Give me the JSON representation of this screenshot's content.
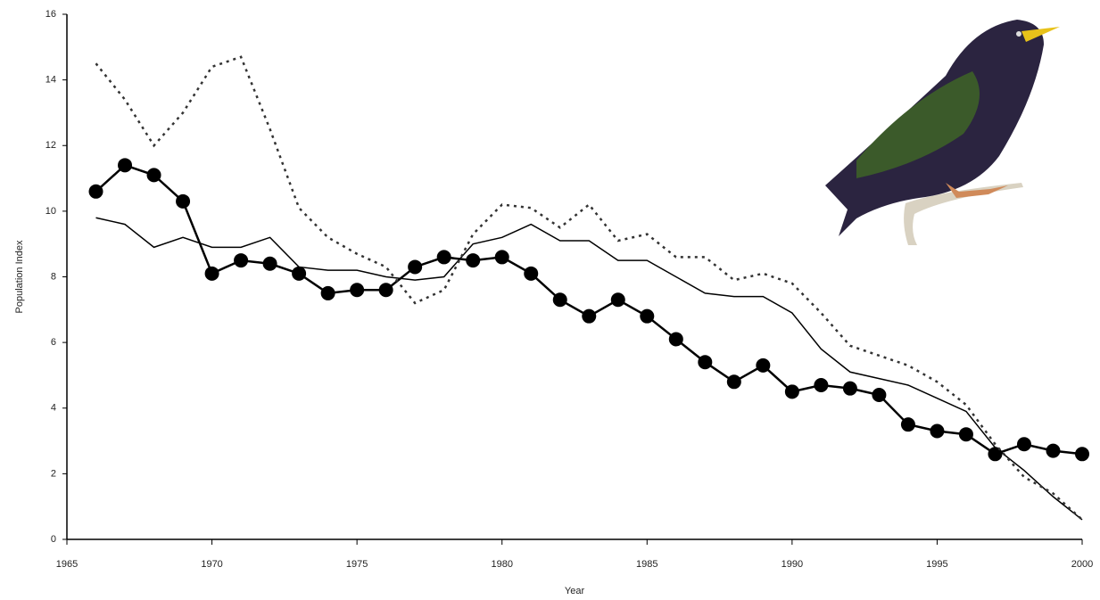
{
  "chart_data": {
    "type": "line",
    "x_label": "Year",
    "y_label": "Population Index",
    "x": [
      1966,
      1967,
      1968,
      1969,
      1970,
      1971,
      1972,
      1973,
      1974,
      1975,
      1976,
      1977,
      1978,
      1979,
      1980,
      1981,
      1982,
      1983,
      1984,
      1985,
      1986,
      1987,
      1988,
      1989,
      1990,
      1991,
      1992,
      1993,
      1994,
      1995,
      1996,
      1997,
      1998,
      1999,
      2000
    ],
    "series": [
      {
        "color": "#000000",
        "style": "solid",
        "width": 2.5,
        "marker": "circle",
        "values": [
          10.6,
          11.4,
          11.1,
          10.3,
          8.1,
          8.5,
          8.4,
          8.1,
          7.5,
          7.6,
          7.6,
          8.3,
          8.6,
          8.5,
          8.6,
          8.1,
          7.3,
          6.8,
          7.3,
          6.8,
          6.1,
          5.4,
          4.8,
          5.3,
          4.5,
          4.7,
          4.6,
          4.4,
          3.5,
          3.3,
          3.2,
          2.6,
          2.9,
          2.7,
          2.6
        ]
      },
      {
        "color": "#000000",
        "style": "solid",
        "width": 1.5,
        "values": [
          9.8,
          9.6,
          8.9,
          9.2,
          8.9,
          8.9,
          9.2,
          8.3,
          8.2,
          8.2,
          8.0,
          7.9,
          8.0,
          9.0,
          9.2,
          9.6,
          9.1,
          9.1,
          8.5,
          8.5,
          8.0,
          7.5,
          7.4,
          7.4,
          6.9,
          5.8,
          5.1,
          4.9,
          4.7,
          4.3,
          3.9,
          2.8,
          2.1,
          1.3,
          0.6
        ]
      },
      {
        "color": "#333333",
        "style": "dotted",
        "width": 2.5,
        "values": [
          14.5,
          13.4,
          12.0,
          13.0,
          14.4,
          14.7,
          12.5,
          10.1,
          9.2,
          8.7,
          8.3,
          7.2,
          7.6,
          9.3,
          10.2,
          10.1,
          9.5,
          10.2,
          9.1,
          9.3,
          8.6,
          8.6,
          7.9,
          8.1,
          7.8,
          6.9,
          5.9,
          5.6,
          5.3,
          4.8,
          4.1,
          2.9,
          1.9,
          1.4,
          0.6
        ]
      }
    ],
    "xlim": [
      1965,
      2000
    ],
    "xticks": [
      1965,
      1970,
      1975,
      1980,
      1985,
      1990,
      1995,
      2000
    ],
    "ylim": [
      0,
      16
    ],
    "yticks": [
      0,
      2,
      4,
      6,
      8,
      10,
      12,
      14,
      16
    ],
    "grid": false
  }
}
